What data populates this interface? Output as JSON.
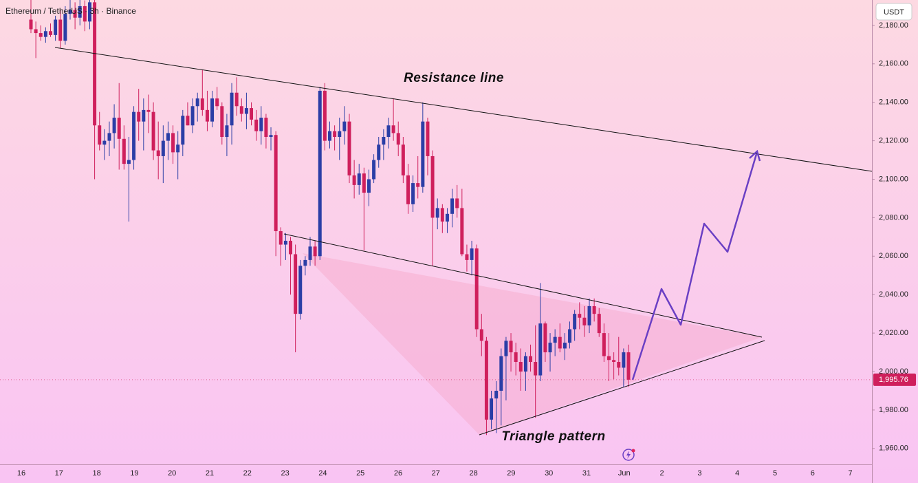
{
  "chart_data": {
    "type": "candlestick",
    "title": "Ethereum / TetherUS · 3h · Binance",
    "currency": "USDT",
    "annotations": [
      "Resistance line",
      "Triangle pattern"
    ],
    "up_color": "#2b3ea6",
    "down_color": "#cf1f5c",
    "grid": false,
    "ylim": [
      1951.7,
      2193.2
    ],
    "yticks": [
      {
        "value": 1960,
        "label": "1,960.00"
      },
      {
        "value": 1980,
        "label": "1,980.00"
      },
      {
        "value": 2000,
        "label": "2,000.00"
      },
      {
        "value": 2020,
        "label": "2,020.00"
      },
      {
        "value": 2040,
        "label": "2,040.00"
      },
      {
        "value": 2060,
        "label": "2,060.00"
      },
      {
        "value": 2080,
        "label": "2,080.00"
      },
      {
        "value": 2100,
        "label": "2,100.00"
      },
      {
        "value": 2120,
        "label": "2,120.00"
      },
      {
        "value": 2140,
        "label": "2,140.00"
      },
      {
        "value": 2160,
        "label": "2,160.00"
      },
      {
        "value": 2180,
        "label": "2,180.00"
      }
    ],
    "last_price": {
      "value": 1995.76,
      "label": "1,995.76"
    },
    "xlabels": [
      "16",
      "17",
      "18",
      "19",
      "20",
      "21",
      "22",
      "23",
      "24",
      "25",
      "26",
      "27",
      "28",
      "29",
      "30",
      "31",
      "Jun",
      "2",
      "3",
      "4",
      "5",
      "6",
      "7"
    ],
    "candles": [
      [
        2183,
        2195,
        2176,
        2178
      ],
      [
        2178,
        2182,
        2163,
        2176
      ],
      [
        2176,
        2180,
        2172,
        2174
      ],
      [
        2174,
        2179,
        2171,
        2177
      ],
      [
        2177,
        2181,
        2174,
        2175
      ],
      [
        2175,
        2185,
        2172,
        2183
      ],
      [
        2183,
        2188,
        2168,
        2172
      ],
      [
        2172,
        2190,
        2170,
        2186
      ],
      [
        2186,
        2195,
        2183,
        2188
      ],
      [
        2188,
        2192,
        2178,
        2184
      ],
      [
        2184,
        2195,
        2180,
        2190
      ],
      [
        2190,
        2193,
        2177,
        2182
      ],
      [
        2182,
        2196,
        2178,
        2192
      ],
      [
        2192,
        2194,
        2100,
        2128
      ],
      [
        2128,
        2135,
        2115,
        2118
      ],
      [
        2118,
        2126,
        2110,
        2120
      ],
      [
        2120,
        2130,
        2112,
        2124
      ],
      [
        2124,
        2139,
        2116,
        2132
      ],
      [
        2132,
        2150,
        2105,
        2121
      ],
      [
        2121,
        2128,
        2105,
        2108
      ],
      [
        2108,
        2122,
        2078,
        2110
      ],
      [
        2110,
        2138,
        2105,
        2135
      ],
      [
        2135,
        2147,
        2120,
        2130
      ],
      [
        2130,
        2142,
        2115,
        2136
      ],
      [
        2136,
        2144,
        2124,
        2135
      ],
      [
        2135,
        2140,
        2110,
        2115
      ],
      [
        2115,
        2130,
        2100,
        2112
      ],
      [
        2112,
        2128,
        2098,
        2120
      ],
      [
        2120,
        2130,
        2110,
        2124
      ],
      [
        2124,
        2128,
        2108,
        2114
      ],
      [
        2114,
        2125,
        2100,
        2118
      ],
      [
        2118,
        2136,
        2112,
        2133
      ],
      [
        2133,
        2140,
        2128,
        2128
      ],
      [
        2128,
        2142,
        2124,
        2138
      ],
      [
        2138,
        2145,
        2130,
        2142
      ],
      [
        2142,
        2157,
        2133,
        2136
      ],
      [
        2136,
        2146,
        2125,
        2130
      ],
      [
        2130,
        2146,
        2127,
        2142
      ],
      [
        2142,
        2148,
        2136,
        2138
      ],
      [
        2138,
        2140,
        2118,
        2122
      ],
      [
        2122,
        2134,
        2112,
        2128
      ],
      [
        2128,
        2150,
        2118,
        2145
      ],
      [
        2145,
        2153,
        2133,
        2138
      ],
      [
        2138,
        2142,
        2130,
        2134
      ],
      [
        2134,
        2145,
        2126,
        2137
      ],
      [
        2137,
        2140,
        2128,
        2131
      ],
      [
        2131,
        2136,
        2120,
        2125
      ],
      [
        2125,
        2138,
        2118,
        2132
      ],
      [
        2132,
        2134,
        2116,
        2122
      ],
      [
        2122,
        2127,
        2115,
        2123
      ],
      [
        2123,
        2125,
        2060,
        2073
      ],
      [
        2073,
        2075,
        2055,
        2066
      ],
      [
        2066,
        2072,
        2058,
        2068
      ],
      [
        2068,
        2070,
        2040,
        2061
      ],
      [
        2061,
        2066,
        2010,
        2030
      ],
      [
        2030,
        2058,
        2027,
        2055
      ],
      [
        2055,
        2060,
        2050,
        2058
      ],
      [
        2058,
        2070,
        2055,
        2065
      ],
      [
        2065,
        2068,
        2055,
        2060
      ],
      [
        2060,
        2148,
        2058,
        2146
      ],
      [
        2146,
        2150,
        2115,
        2120
      ],
      [
        2120,
        2130,
        2116,
        2125
      ],
      [
        2125,
        2128,
        2115,
        2122
      ],
      [
        2122,
        2132,
        2110,
        2125
      ],
      [
        2125,
        2138,
        2118,
        2130
      ],
      [
        2130,
        2134,
        2098,
        2102
      ],
      [
        2102,
        2110,
        2090,
        2097
      ],
      [
        2097,
        2108,
        2092,
        2103
      ],
      [
        2103,
        2106,
        2063,
        2093
      ],
      [
        2093,
        2105,
        2086,
        2100
      ],
      [
        2100,
        2113,
        2098,
        2110
      ],
      [
        2110,
        2122,
        2106,
        2118
      ],
      [
        2118,
        2126,
        2110,
        2122
      ],
      [
        2122,
        2132,
        2116,
        2128
      ],
      [
        2128,
        2142,
        2120,
        2124
      ],
      [
        2124,
        2130,
        2112,
        2118
      ],
      [
        2118,
        2122,
        2098,
        2102
      ],
      [
        2102,
        2108,
        2082,
        2087
      ],
      [
        2087,
        2102,
        2083,
        2098
      ],
      [
        2098,
        2112,
        2090,
        2096
      ],
      [
        2096,
        2140,
        2093,
        2130
      ],
      [
        2130,
        2132,
        2102,
        2112
      ],
      [
        2112,
        2115,
        2055,
        2080
      ],
      [
        2080,
        2090,
        2074,
        2085
      ],
      [
        2085,
        2087,
        2072,
        2078
      ],
      [
        2078,
        2085,
        2072,
        2082
      ],
      [
        2082,
        2095,
        2075,
        2090
      ],
      [
        2090,
        2097,
        2080,
        2085
      ],
      [
        2085,
        2095,
        2060,
        2061
      ],
      [
        2061,
        2066,
        2052,
        2058
      ],
      [
        2058,
        2068,
        2050,
        2064
      ],
      [
        2064,
        2066,
        2018,
        2022
      ],
      [
        2022,
        2030,
        2008,
        2016
      ],
      [
        2016,
        2018,
        1967,
        1975
      ],
      [
        1975,
        1990,
        1970,
        1986
      ],
      [
        1986,
        1995,
        1968,
        1990
      ],
      [
        1990,
        2012,
        1972,
        2008
      ],
      [
        2008,
        2018,
        1985,
        2016
      ],
      [
        2016,
        2020,
        2000,
        2010
      ],
      [
        2010,
        2015,
        1998,
        2005
      ],
      [
        2005,
        2012,
        1990,
        2000
      ],
      [
        2000,
        2010,
        1990,
        2008
      ],
      [
        2008,
        2014,
        2000,
        2005
      ],
      [
        2005,
        2024,
        1976,
        1998
      ],
      [
        1998,
        2046,
        1995,
        2025
      ],
      [
        2025,
        2026,
        2005,
        2010
      ],
      [
        2010,
        2020,
        2000,
        2015
      ],
      [
        2015,
        2022,
        2008,
        2018
      ],
      [
        2018,
        2025,
        2010,
        2012
      ],
      [
        2012,
        2020,
        2006,
        2015
      ],
      [
        2015,
        2026,
        2012,
        2022
      ],
      [
        2022,
        2032,
        2016,
        2030
      ],
      [
        2030,
        2036,
        2022,
        2028
      ],
      [
        2028,
        2034,
        2018,
        2024
      ],
      [
        2024,
        2038,
        2020,
        2034
      ],
      [
        2034,
        2038,
        2026,
        2030
      ],
      [
        2030,
        2033,
        2018,
        2020
      ],
      [
        2020,
        2025,
        2005,
        2008
      ],
      [
        2008,
        2020,
        1995,
        2006
      ],
      [
        2006,
        2010,
        1996,
        2005
      ],
      [
        2005,
        2018,
        1998,
        2002
      ],
      [
        2002,
        2012,
        1992,
        2010
      ],
      [
        2010,
        2014,
        1992,
        1995.76
      ]
    ]
  }
}
